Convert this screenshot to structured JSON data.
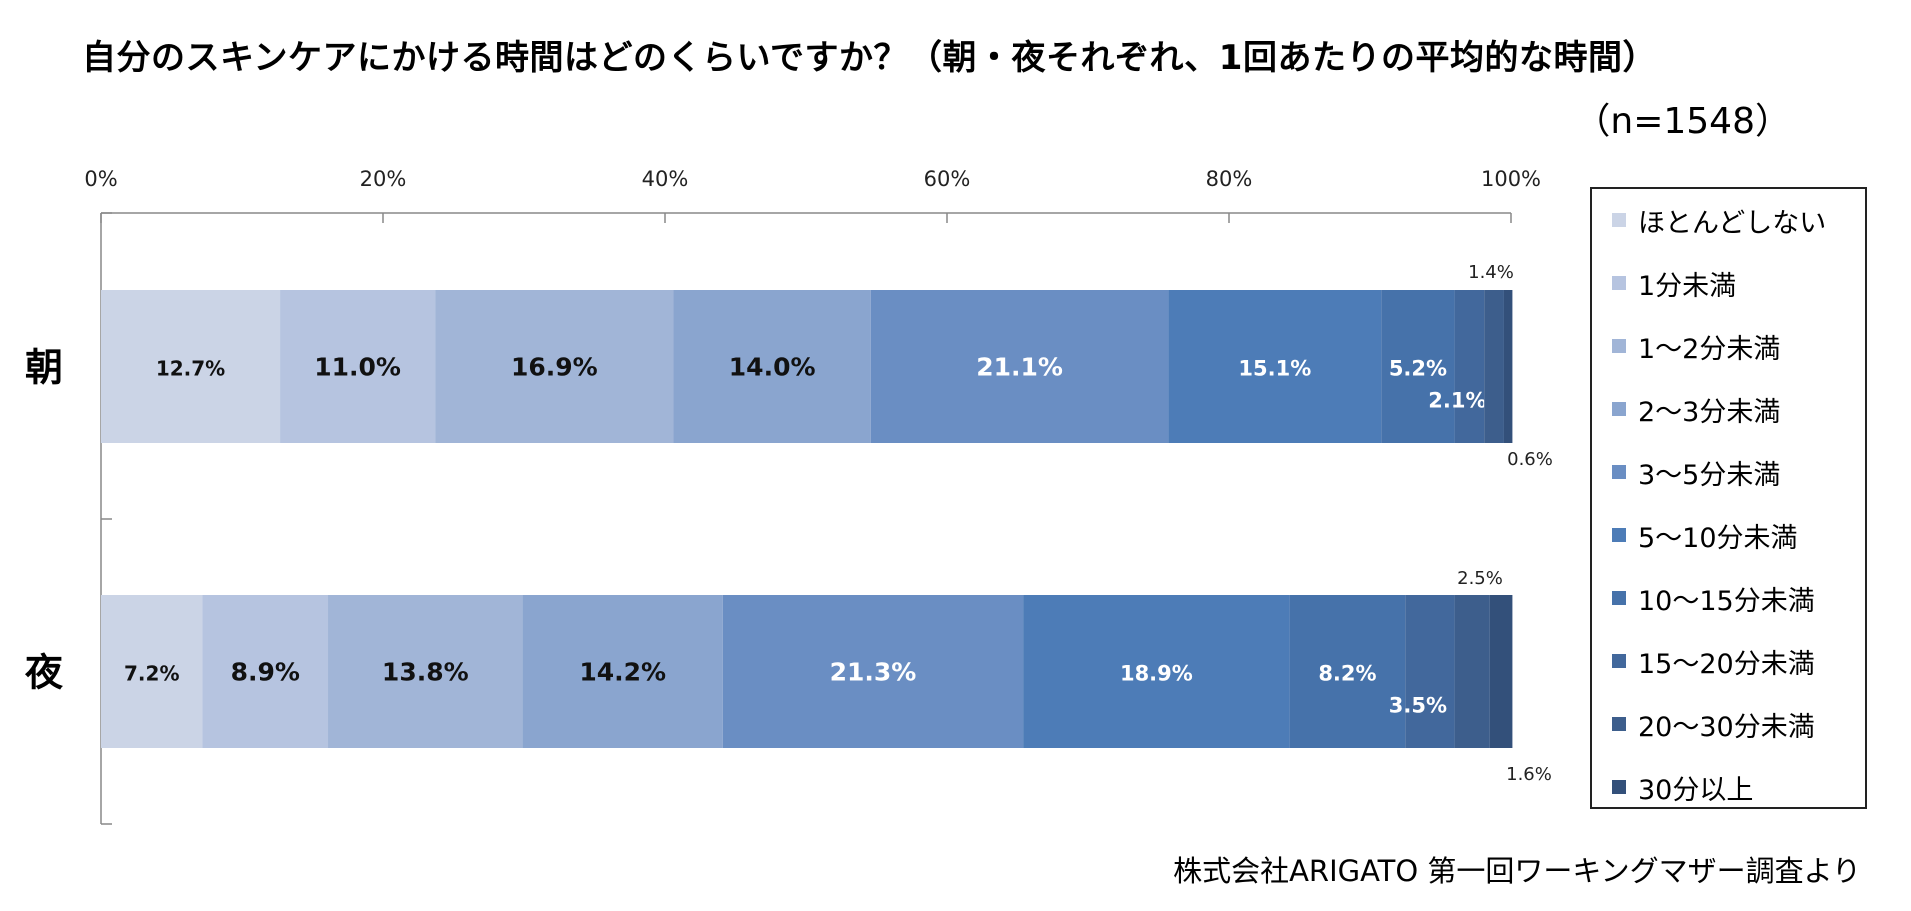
{
  "title": "自分のスキンケアにかける時間はどのくらいですか？（朝・夜それぞれ、1回あたりの平均的な時間）",
  "sample_size": "（n=1548）",
  "source": "株式会社ARIGATO 第一回ワーキングマザー調査より",
  "chart_data": {
    "type": "bar",
    "orientation": "horizontal",
    "stacked": "percent",
    "title": "自分のスキンケアにかける時間はどのくらいですか？（朝・夜それぞれ、1回あたりの平均的な時間）",
    "categories": [
      "朝",
      "夜"
    ],
    "xlim": [
      0,
      100
    ],
    "xticks": [
      "0%",
      "20%",
      "40%",
      "60%",
      "80%",
      "100%"
    ],
    "legend_position": "right",
    "grid": false,
    "series": [
      {
        "name": "ほとんどしない",
        "values": [
          12.7,
          7.2
        ],
        "labels": [
          "12.7%",
          "7.2%"
        ],
        "color": "#cbd4e6"
      },
      {
        "name": "1分未満",
        "values": [
          11.0,
          8.9
        ],
        "labels": [
          "11.0%",
          "8.9%"
        ],
        "color": "#b6c4e0"
      },
      {
        "name": "1～2分未満",
        "values": [
          16.9,
          13.8
        ],
        "labels": [
          "16.9%",
          "13.8%"
        ],
        "color": "#a1b5d7"
      },
      {
        "name": "2～3分未満",
        "values": [
          14.0,
          14.2
        ],
        "labels": [
          "14.0%",
          "14.2%"
        ],
        "color": "#8aa5cf"
      },
      {
        "name": "3～5分未満",
        "values": [
          21.1,
          21.3
        ],
        "labels": [
          "21.1%",
          "21.3%"
        ],
        "color": "#6a8ec3"
      },
      {
        "name": "5～10分未満",
        "values": [
          15.1,
          18.9
        ],
        "labels": [
          "15.1%",
          "18.9%"
        ],
        "color": "#4d7cb7"
      },
      {
        "name": "10～15分未満",
        "values": [
          5.2,
          8.2
        ],
        "labels": [
          "5.2%",
          "8.2%"
        ],
        "color": "#4672aa"
      },
      {
        "name": "15～20分未満",
        "values": [
          2.1,
          3.5
        ],
        "labels": [
          "2.1%",
          "3.5%"
        ],
        "color": "#42689c"
      },
      {
        "name": "20～30分未満",
        "values": [
          1.4,
          2.5
        ],
        "labels": [
          "1.4%",
          "2.5%"
        ],
        "color": "#3d5e8c"
      },
      {
        "name": "30分以上",
        "values": [
          0.6,
          1.6
        ],
        "labels": [
          "0.6%",
          "1.6%"
        ],
        "color": "#33507a"
      }
    ]
  }
}
